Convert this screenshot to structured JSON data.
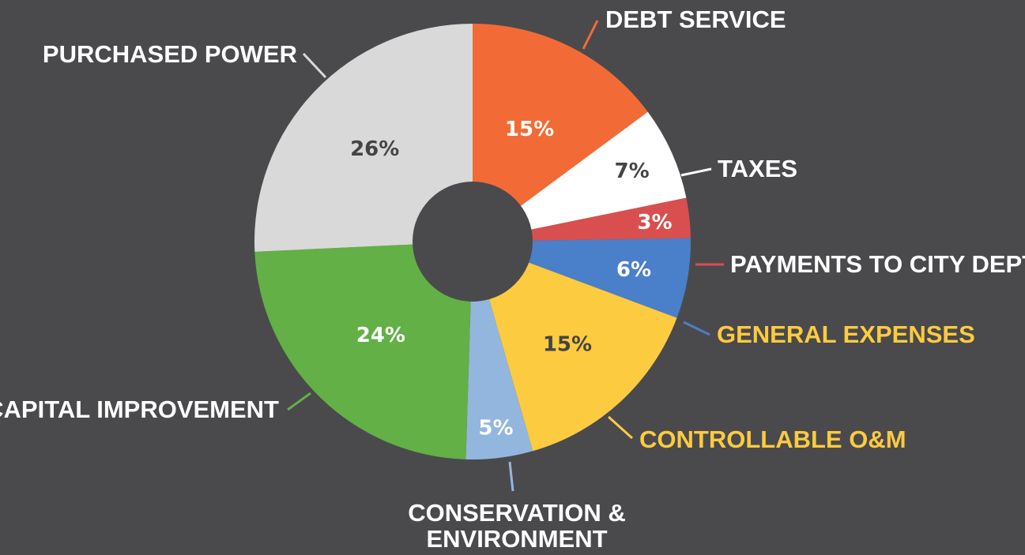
{
  "chart_data": {
    "type": "pie",
    "style": "donut",
    "title": "",
    "legend": "none",
    "background": "#4a4a4d",
    "slices": [
      {
        "name": "DEBT SERVICE",
        "value": 15,
        "label": "15%",
        "color": "#f26b36",
        "value_color": "#ffffff",
        "label_color": "#ffffff",
        "leader_color": "#f26b36"
      },
      {
        "name": "TAXES",
        "value": 7,
        "label": "7%",
        "color": "#ffffff",
        "value_color": "#444444",
        "label_color": "#ffffff",
        "leader_color": "#ffffff"
      },
      {
        "name": "PAYMENTS TO CITY DEPTS",
        "value": 3,
        "label": "3%",
        "color": "#d94f4f",
        "value_color": "#ffffff",
        "label_color": "#ffffff",
        "leader_color": "#d94f4f"
      },
      {
        "name": "GENERAL EXPENSES",
        "value": 6,
        "label": "6%",
        "color": "#4a7fc9",
        "value_color": "#ffffff",
        "label_color": "#fdcb3f",
        "leader_color": "#4a7fc9"
      },
      {
        "name": "CONTROLLABLE O&M",
        "value": 15,
        "label": "15%",
        "color": "#fdcb3f",
        "value_color": "#444444",
        "label_color": "#fdcb3f",
        "leader_color": "#fdcb3f"
      },
      {
        "name": "CONSERVATION & ENVIRONMENT",
        "name_lines": [
          "CONSERVATION &",
          "ENVIRONMENT"
        ],
        "value": 5,
        "label": "5%",
        "color": "#93b6de",
        "value_color": "#ffffff",
        "label_color": "#ffffff",
        "leader_color": "#93b6de"
      },
      {
        "name": "CAPITAL IMPROVEMENT",
        "value": 24,
        "label": "24%",
        "color": "#63b046",
        "value_color": "#ffffff",
        "label_color": "#ffffff",
        "leader_color": "#63b046"
      },
      {
        "name": "PURCHASED POWER",
        "value": 26,
        "label": "26%",
        "color": "#d9d9d9",
        "value_color": "#444444",
        "label_color": "#ffffff",
        "leader_color": "#d9d9d9"
      }
    ]
  }
}
